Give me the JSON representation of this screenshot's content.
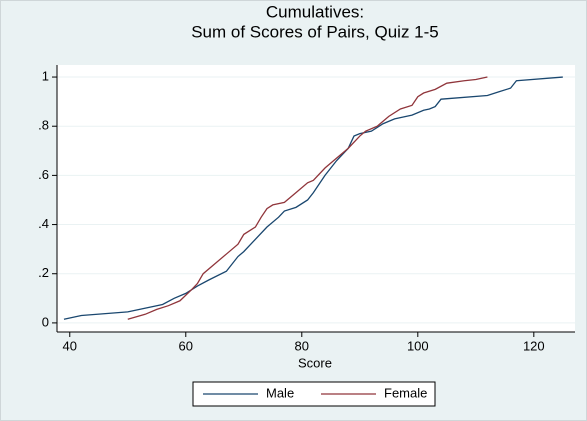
{
  "chart_data": {
    "type": "line",
    "title": [
      "Cumulatives:",
      "Sum of Scores of Pairs, Quiz 1-5"
    ],
    "x_label": "Score",
    "xlim": [
      37.8,
      127.1
    ],
    "xticks": [
      40,
      60,
      80,
      100,
      120
    ],
    "ylim": [
      -0.037,
      1.049
    ],
    "yticks": [
      0,
      {
        "value": 0.2,
        "label": ".2"
      },
      {
        "value": 0.4,
        "label": ".4"
      },
      {
        "value": 0.6,
        "label": ".6"
      },
      {
        "value": 0.8,
        "label": ".8"
      },
      1
    ],
    "grid": true,
    "legend": "bottom",
    "series": [
      {
        "name": "Male",
        "color": "#1a476f",
        "x": [
          39,
          42,
          50,
          56,
          58,
          60,
          62,
          64,
          67,
          69,
          70,
          72,
          74,
          76,
          77,
          79,
          81,
          82,
          84,
          86,
          88,
          89,
          90,
          92,
          94,
          96,
          99,
          101,
          102,
          103,
          104,
          112,
          114,
          116,
          117,
          125
        ],
        "values": [
          0.015,
          0.03,
          0.045,
          0.075,
          0.1,
          0.12,
          0.15,
          0.175,
          0.21,
          0.27,
          0.29,
          0.34,
          0.39,
          0.43,
          0.455,
          0.47,
          0.5,
          0.53,
          0.6,
          0.66,
          0.71,
          0.76,
          0.77,
          0.78,
          0.81,
          0.83,
          0.845,
          0.865,
          0.87,
          0.88,
          0.91,
          0.925,
          0.94,
          0.955,
          0.985,
          1.0
        ]
      },
      {
        "name": "Female",
        "color": "#90353b",
        "x": [
          50,
          53,
          55,
          57,
          59,
          61,
          62,
          63,
          65,
          67,
          69,
          70,
          72,
          73,
          74,
          75,
          77,
          79,
          81,
          82,
          84,
          86,
          88,
          90,
          91,
          93,
          95,
          97,
          99,
          100,
          101,
          103,
          105,
          108,
          110,
          112
        ],
        "values": [
          0.015,
          0.035,
          0.055,
          0.07,
          0.09,
          0.135,
          0.16,
          0.2,
          0.24,
          0.28,
          0.32,
          0.36,
          0.39,
          0.43,
          0.465,
          0.48,
          0.49,
          0.53,
          0.57,
          0.58,
          0.63,
          0.67,
          0.71,
          0.76,
          0.78,
          0.8,
          0.84,
          0.87,
          0.885,
          0.92,
          0.935,
          0.95,
          0.975,
          0.985,
          0.99,
          1.0
        ]
      }
    ]
  }
}
